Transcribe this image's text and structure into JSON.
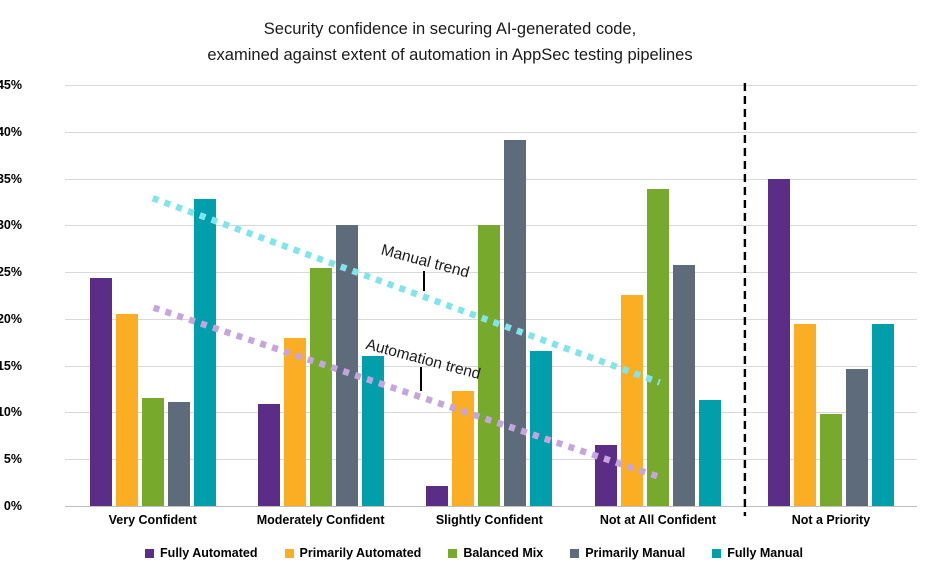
{
  "title": {
    "line1": "Security confidence in securing AI-generated code,",
    "line2": "examined against extent of automation in AppSec testing pipelines"
  },
  "chart_data": {
    "type": "bar",
    "title": "Security confidence in securing AI-generated code, examined against extent of automation in AppSec testing pipelines",
    "categories": [
      "Very Confident",
      "Moderately Confident",
      "Slightly Confident",
      "Not at All Confident",
      "Not a Priority"
    ],
    "series": [
      {
        "name": "Fully Automated",
        "color": "#5B2D87",
        "values": [
          24.4,
          10.9,
          2.1,
          6.5,
          35.0
        ]
      },
      {
        "name": "Primarily Automated",
        "color": "#FBAE24",
        "values": [
          20.5,
          18.0,
          12.3,
          22.6,
          19.5
        ]
      },
      {
        "name": "Balanced Mix",
        "color": "#77A92C",
        "values": [
          11.5,
          25.4,
          30.0,
          33.9,
          9.8
        ]
      },
      {
        "name": "Primarily Manual",
        "color": "#5E6B7A",
        "values": [
          11.1,
          30.0,
          39.1,
          25.8,
          14.6
        ]
      },
      {
        "name": "Fully Manual",
        "color": "#009FAB",
        "values": [
          32.8,
          16.0,
          16.6,
          11.3,
          19.5
        ]
      }
    ],
    "xlabel": "",
    "ylabel": "",
    "ylim": [
      0,
      45
    ],
    "ytick_step": 5,
    "ytick_suffix": "%",
    "grid": true,
    "legend_position": "bottom",
    "gridline_color": "#D9D9D9",
    "axis_line_color": "#BFBFBF",
    "group_centers_pct": [
      10.3,
      30.0,
      49.8,
      69.6,
      89.9
    ],
    "separator": {
      "x_pct": 79.8,
      "color": "#000000",
      "style": "dashed",
      "purpose": "separates Not a Priority group"
    },
    "trend_lines": [
      {
        "label": "Manual trend",
        "color": "#7FE5EC",
        "x1_pct": 10.3,
        "y1_value": 32.9,
        "x2_pct": 69.8,
        "y2_value": 13.2
      },
      {
        "label": "Automation trend",
        "color": "#C6A5DF",
        "x1_pct": 10.4,
        "y1_value": 21.2,
        "x2_pct": 70.1,
        "y2_value": 3.0
      }
    ],
    "annotations": [
      {
        "text": "Manual trend",
        "x_pct": 42.3,
        "y_value": 26.1,
        "rotation_deg": 15,
        "leader": {
          "x_pct": 42.0,
          "y1_value": 25.1,
          "y2_value": 23.0
        }
      },
      {
        "text": "Automation trend",
        "x_pct": 42.0,
        "y_value": 15.6,
        "rotation_deg": 15,
        "leader": {
          "x_pct": 41.7,
          "y1_value": 14.9,
          "y2_value": 12.3
        }
      }
    ]
  }
}
